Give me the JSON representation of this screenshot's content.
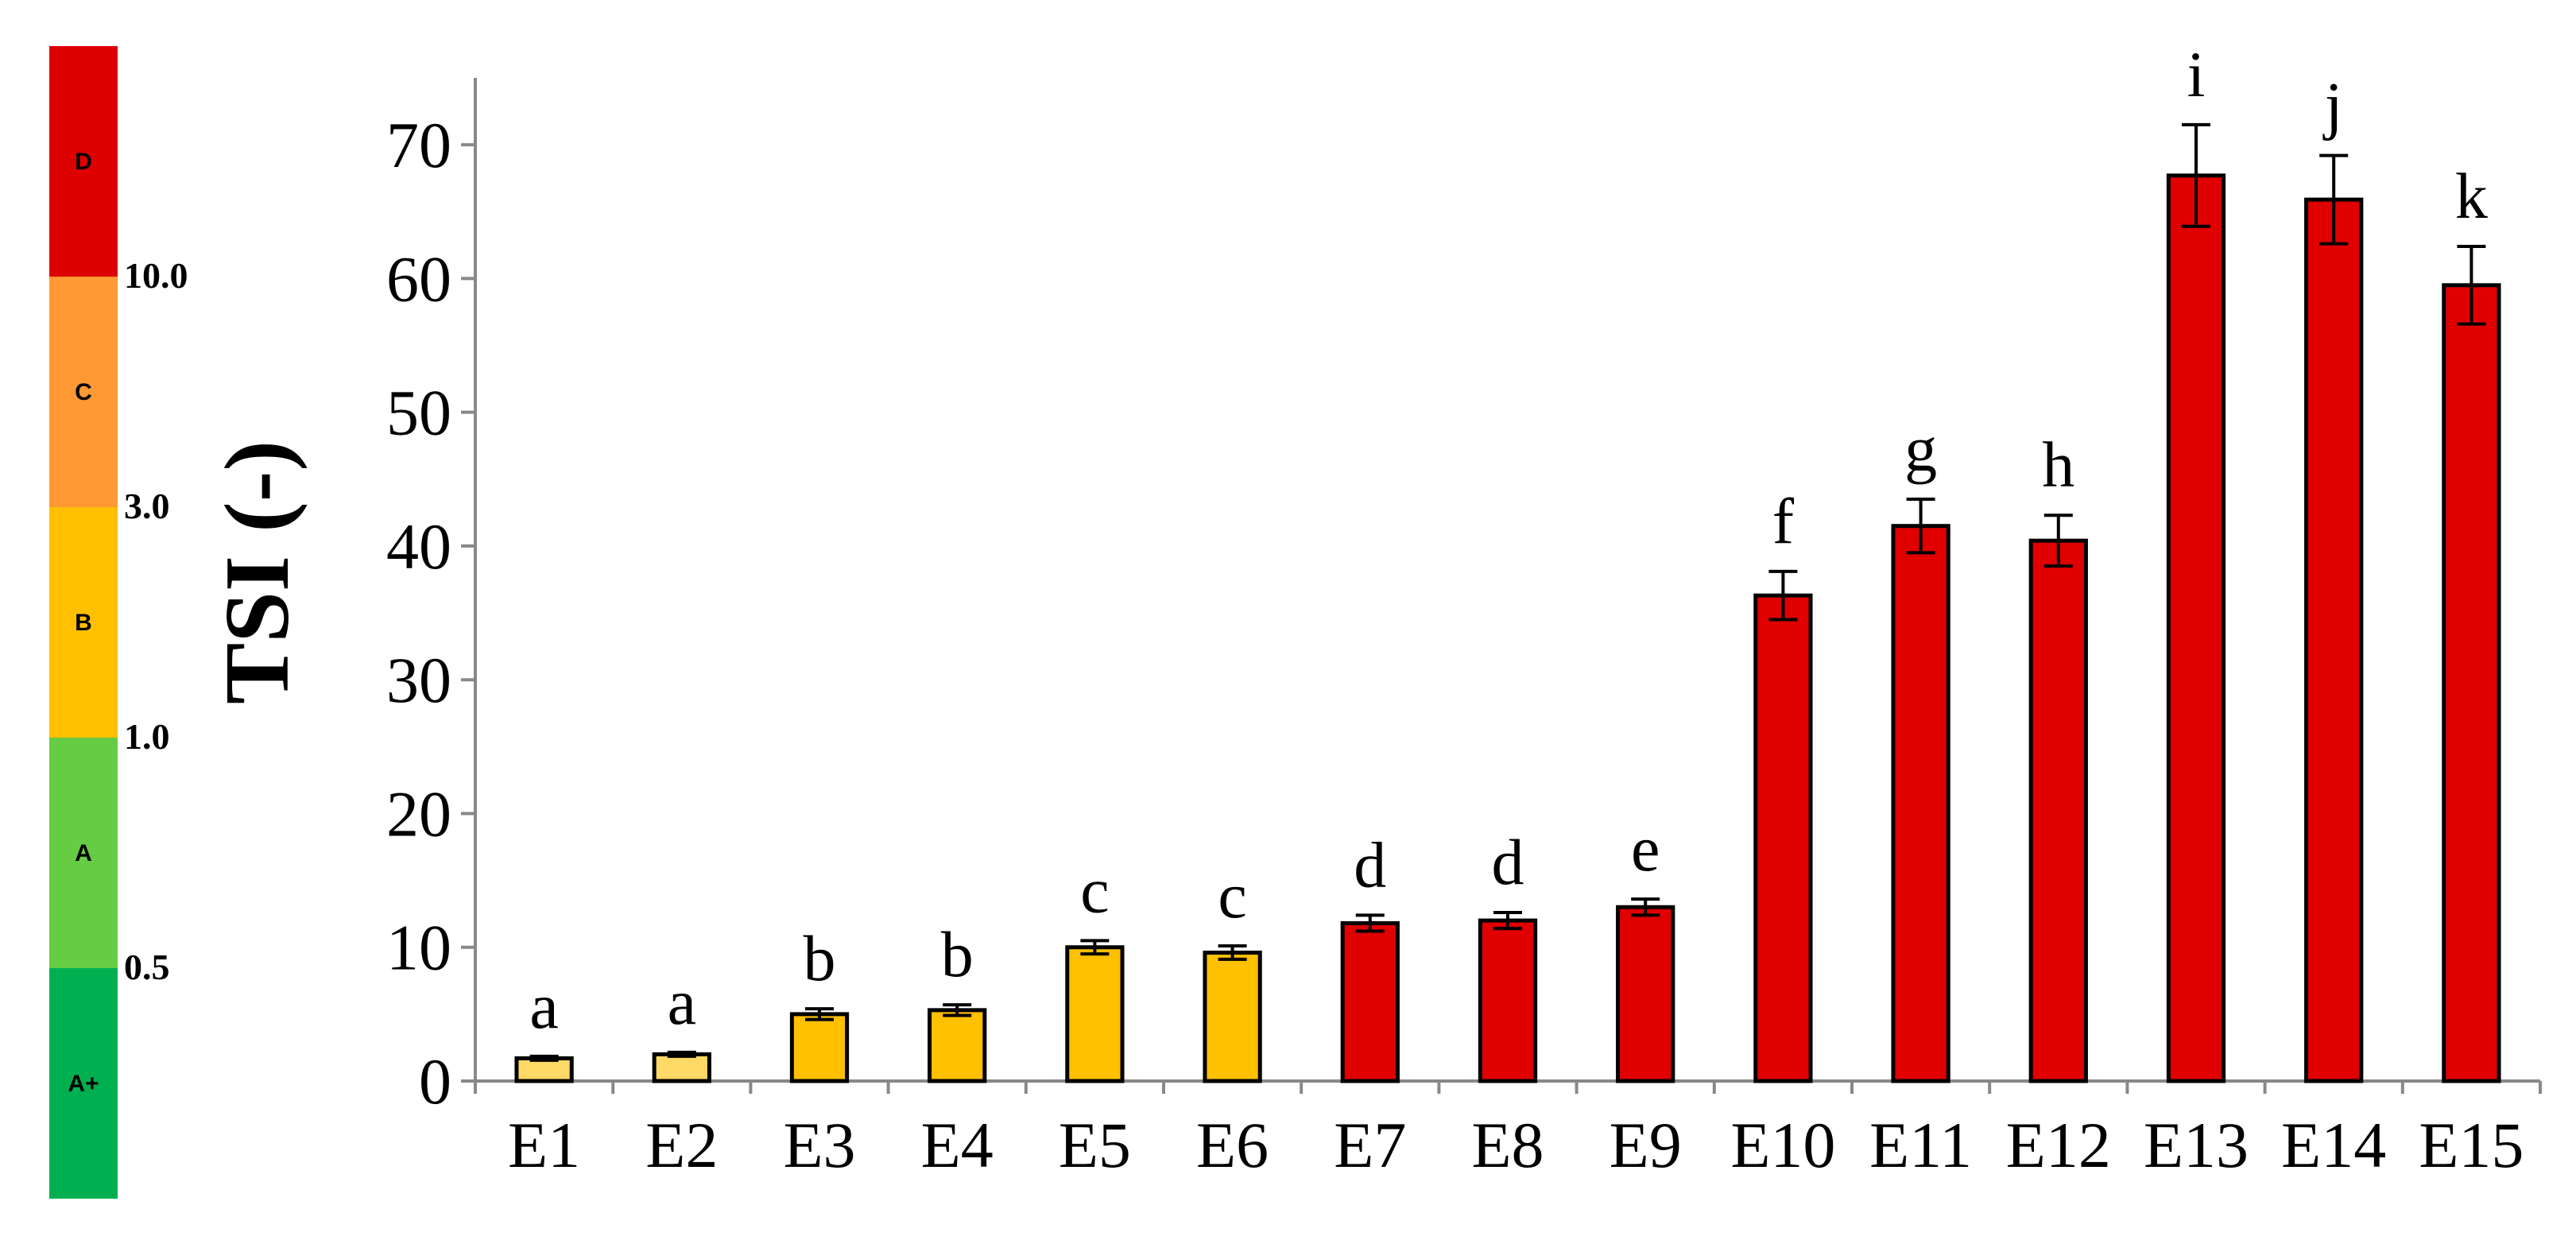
{
  "colors": {
    "scale_A_plus": "#00b050",
    "scale_A": "#66cc44",
    "scale_B": "#ffc000",
    "scale_C": "#ff9933",
    "scale_D": "#dd0000",
    "bar_light_yellow": "#ffd966",
    "bar_orange": "#ffc000",
    "bar_red": "#e00000"
  },
  "stability_scale": {
    "classes": [
      {
        "label": "D",
        "color_key": "scale_D"
      },
      {
        "label": "C",
        "color_key": "scale_C"
      },
      {
        "label": "B",
        "color_key": "scale_B"
      },
      {
        "label": "A",
        "color_key": "scale_A"
      },
      {
        "label": "A+",
        "color_key": "scale_A_plus"
      }
    ],
    "thresholds": [
      "10.0",
      "3.0",
      "1.0",
      "0.5"
    ]
  },
  "chart_data": {
    "type": "bar",
    "title": "",
    "xlabel": "",
    "ylabel": "TSI (-)",
    "ylim": [
      0,
      75
    ],
    "yticks": [
      0,
      10,
      20,
      30,
      40,
      50,
      60,
      70
    ],
    "grid": false,
    "categories": [
      "E1",
      "E2",
      "E3",
      "E4",
      "E5",
      "E6",
      "E7",
      "E8",
      "E9",
      "E10",
      "E11",
      "E12",
      "E13",
      "E14",
      "E15"
    ],
    "values": [
      1.7,
      2.0,
      5.0,
      5.3,
      10.0,
      9.6,
      11.8,
      12.0,
      13.0,
      36.3,
      41.5,
      40.4,
      67.7,
      65.9,
      59.5
    ],
    "errors": [
      0.15,
      0.15,
      0.4,
      0.4,
      0.5,
      0.5,
      0.6,
      0.6,
      0.6,
      1.8,
      2.0,
      1.9,
      3.8,
      3.3,
      2.9
    ],
    "significance_letters": [
      "a",
      "a",
      "b",
      "b",
      "c",
      "c",
      "d",
      "d",
      "e",
      "f",
      "g",
      "h",
      "i",
      "j",
      "k"
    ],
    "bar_colors": [
      "bar_light_yellow",
      "bar_light_yellow",
      "bar_orange",
      "bar_orange",
      "bar_orange",
      "bar_orange",
      "bar_red",
      "bar_red",
      "bar_red",
      "bar_red",
      "bar_red",
      "bar_red",
      "bar_red",
      "bar_red",
      "bar_red"
    ]
  }
}
